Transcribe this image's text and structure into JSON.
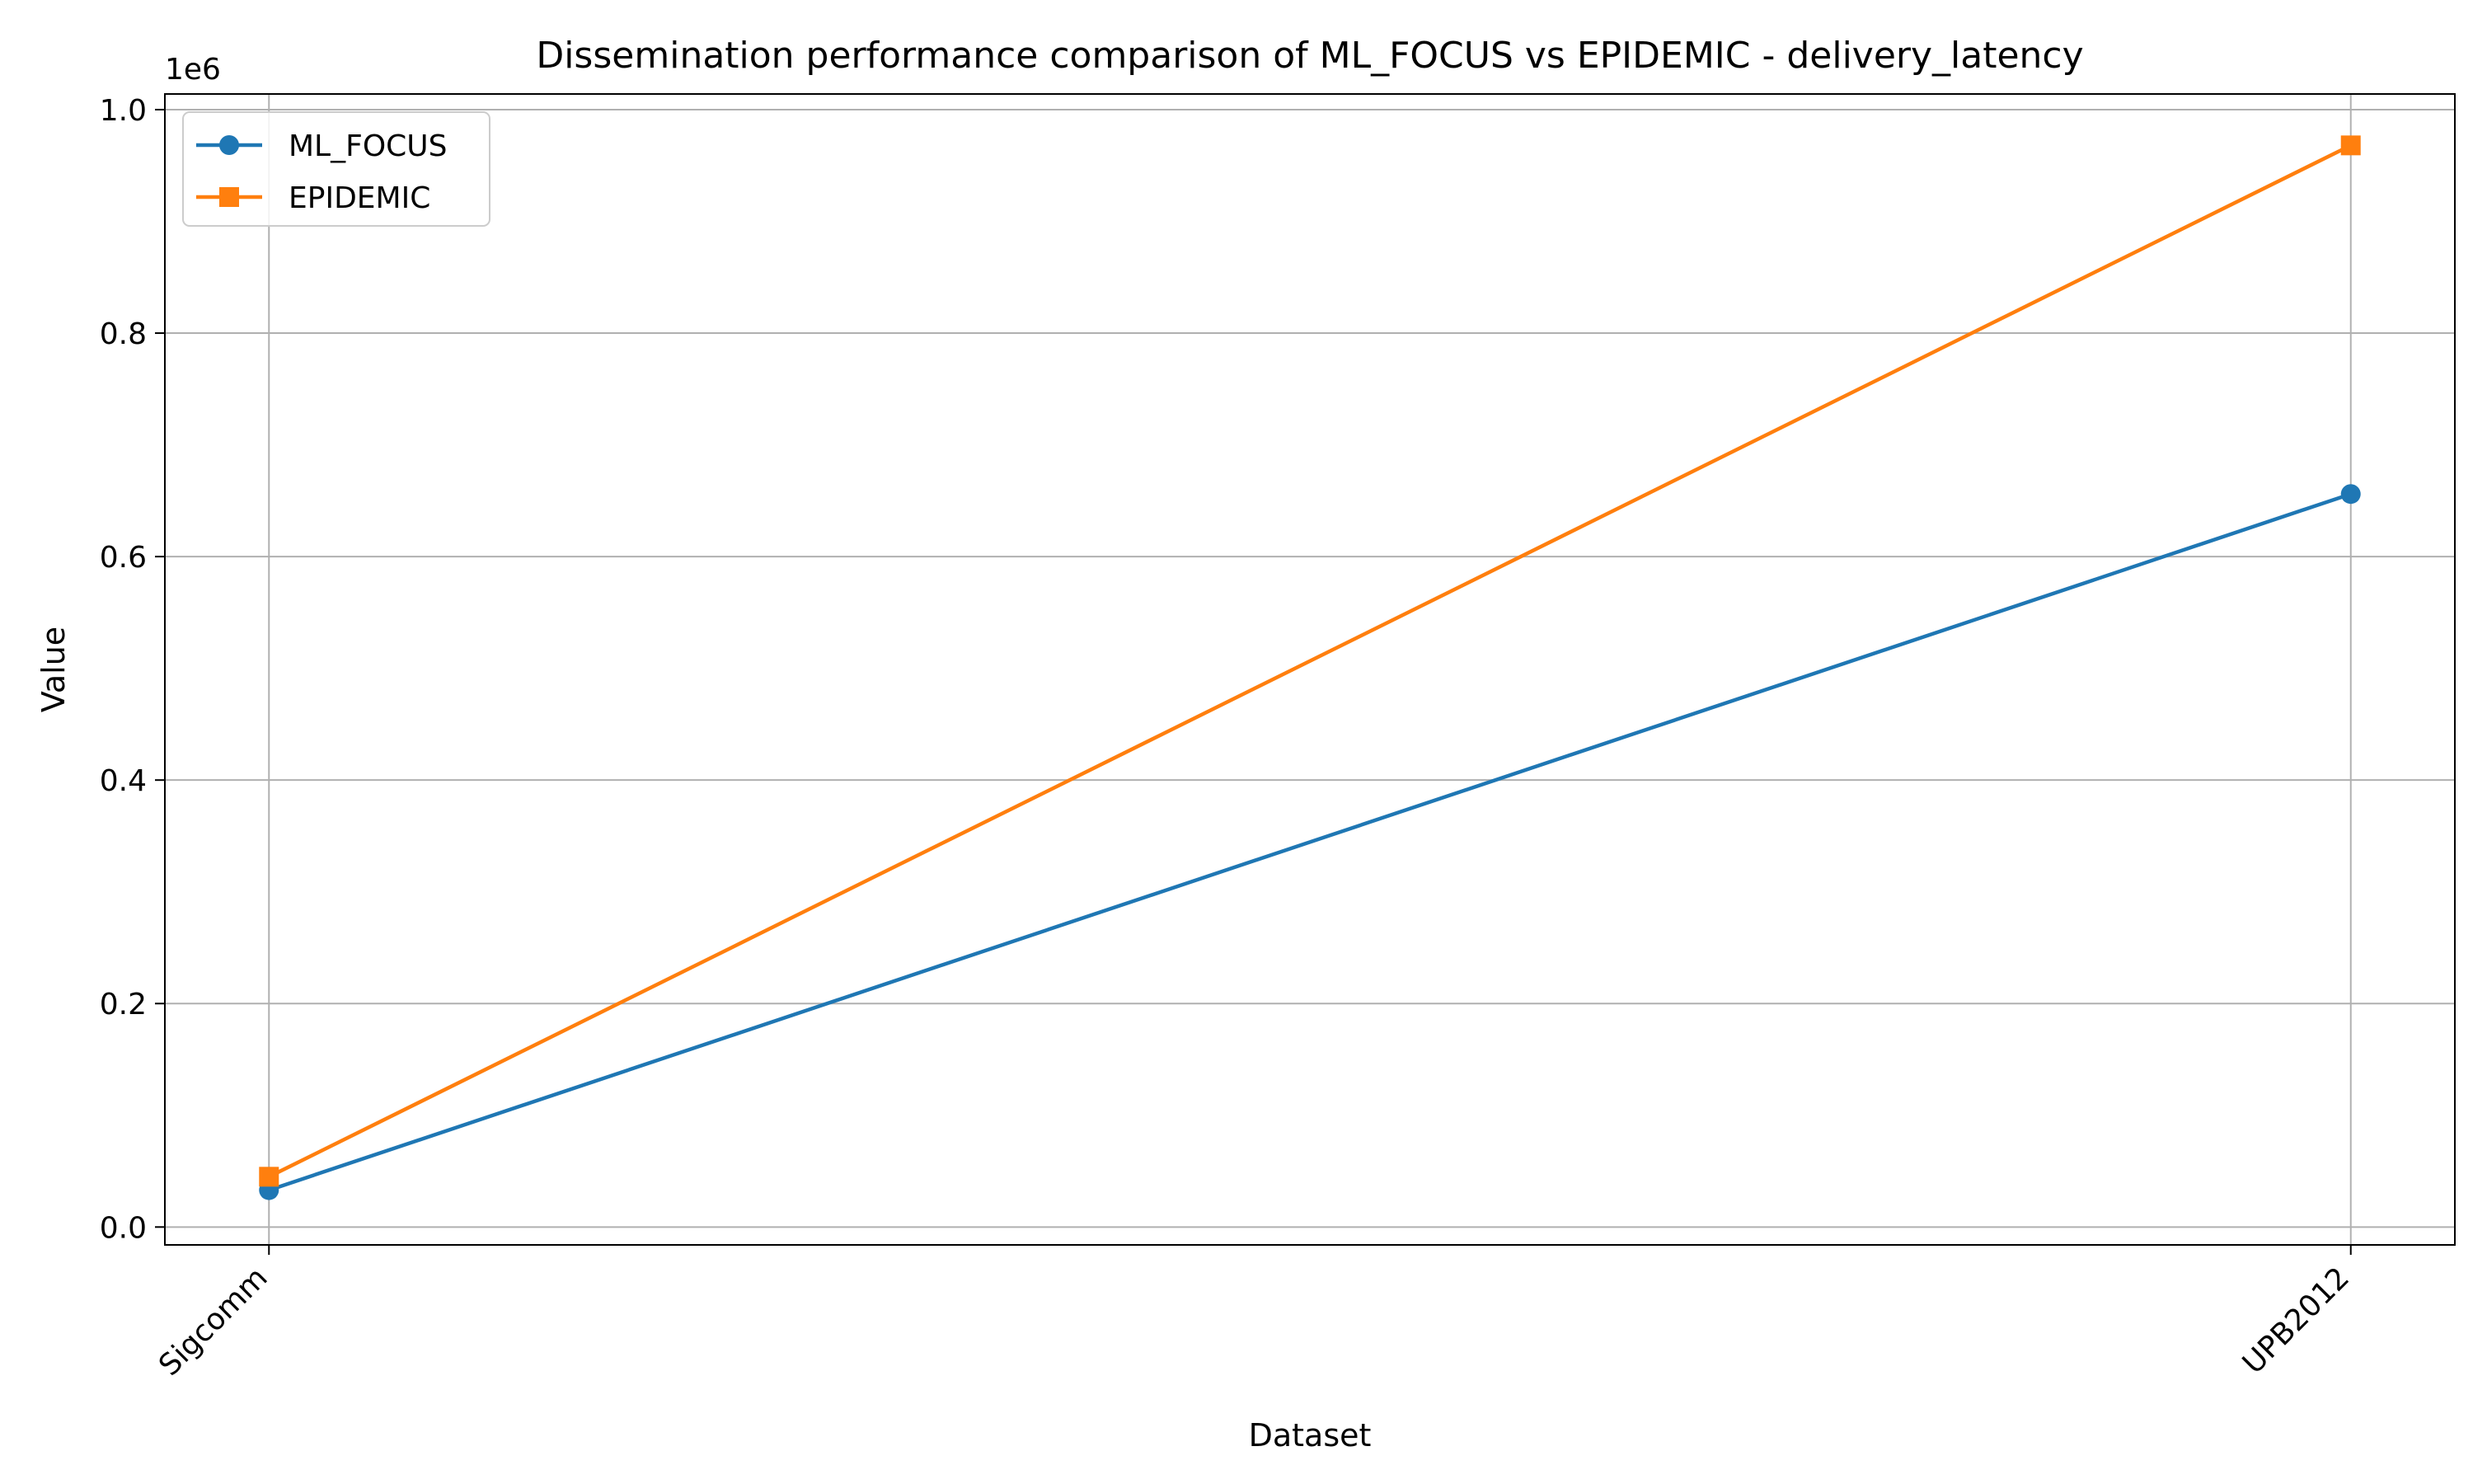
{
  "chart_data": {
    "type": "line",
    "title": "Dissemination performance comparison of ML_FOCUS vs EPIDEMIC - delivery_latency",
    "xlabel": "Dataset",
    "ylabel": "Value",
    "y_multiplier_label": "1e6",
    "categories": [
      "Sigcomm",
      "UPB2012"
    ],
    "ylim": [
      -0.016,
      1.014
    ],
    "y_ticks": [
      0.0,
      0.2,
      0.4,
      0.6,
      0.8,
      1.0
    ],
    "y_tick_labels": [
      "0.0",
      "0.2",
      "0.4",
      "0.6",
      "0.8",
      "1.0"
    ],
    "grid": true,
    "legend_position": "top-left",
    "series": [
      {
        "name": "ML_FOCUS",
        "values": [
          0.033,
          0.656
        ],
        "color": "#1f77b4",
        "marker": "circle"
      },
      {
        "name": "EPIDEMIC",
        "values": [
          0.045,
          0.968
        ],
        "color": "#ff7f0e",
        "marker": "square"
      }
    ]
  }
}
